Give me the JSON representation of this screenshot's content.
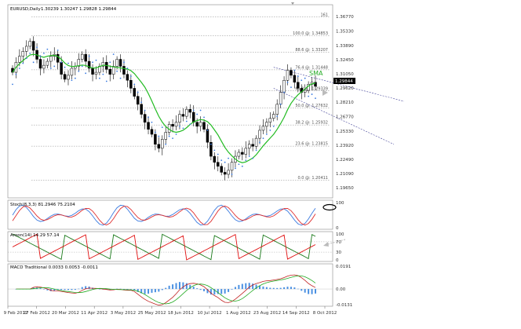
{
  "header": {
    "symbol": "EURUSD,Daily",
    "ohlc": "1.30239 1.30247 1.29828 1.29844"
  },
  "main": {
    "price_label": "1.29844",
    "sma_label": "SMA",
    "y_ticks": [
      "1.36770",
      "1.35330",
      "1.33890",
      "1.32450",
      "1.31050",
      "1.29620",
      "1.28210",
      "1.26770",
      "1.25330",
      "1.23920",
      "1.22490",
      "1.21090",
      "1.19650"
    ],
    "fib_levels": [
      {
        "label": "161",
        "price": 1.3672
      },
      {
        "label": "100.0 @: 1.34853",
        "price": 1.34853
      },
      {
        "label": "88.6 @: 1.33207",
        "price": 1.33207
      },
      {
        "label": "76.4 @: 1.31448",
        "price": 1.31448
      },
      {
        "label": "61.8 @: 1.29339",
        "price": 1.29339
      },
      {
        "label": "50.0 @: 1.27632",
        "price": 1.27632
      },
      {
        "label": "38.2 @: 1.25932",
        "price": 1.25932
      },
      {
        "label": "23.6 @: 1.23815",
        "price": 1.23815
      },
      {
        "label": "0.0 @: 1.20411",
        "price": 1.20411
      }
    ]
  },
  "stoch": {
    "label": "Stoch(8,3,3) 81.2946 75.2104",
    "y_ticks": [
      "100",
      "0"
    ]
  },
  "aroon": {
    "label": "Aroon(14) 14.29 57.14",
    "y_ticks": [
      "100",
      "70",
      "30",
      "0"
    ]
  },
  "macd": {
    "label": "MACD Traditional 0.0033 0.0053 -0.0011",
    "y_ticks": [
      "0.0191",
      "0.00",
      "-0.0131"
    ]
  },
  "x_ticks": [
    "9 Feb 2012",
    "27 Feb 2012",
    "20 Mar 2012",
    "11 Apr 2012",
    "3 May 2012",
    "25 May 2012",
    "18 Jun 2012",
    "10 Jul 2012",
    "1 Aug 2012",
    "23 Aug 2012",
    "14 Sep 2012",
    "8 Oct 2012"
  ],
  "colors": {
    "candle": "#000000",
    "sar": "#3b7be0",
    "sma": "#22bb22",
    "trendline": "#444499",
    "stoch_k": "#3b7be0",
    "stoch_d": "#e03030",
    "aroon_up": "#1a7a1a",
    "aroon_down": "#e01010",
    "macd_hist": "#4a90e2",
    "macd_line": "#c02020",
    "macd_signal": "#22aa22"
  },
  "chart_data": {
    "type": "candlestick",
    "symbol": "EURUSD",
    "timeframe": "Daily",
    "ylim": [
      1.188,
      1.378
    ],
    "x_ticks": [
      "9 Feb 2012",
      "27 Feb 2012",
      "20 Mar 2012",
      "11 Apr 2012",
      "3 May 2012",
      "25 May 2012",
      "18 Jun 2012",
      "10 Jul 2012",
      "1 Aug 2012",
      "23 Aug 2012",
      "14 Sep 2012",
      "8 Oct 2012"
    ],
    "close_path": [
      1.312,
      1.322,
      1.328,
      1.333,
      1.338,
      1.343,
      1.334,
      1.325,
      1.316,
      1.319,
      1.323,
      1.328,
      1.33,
      1.322,
      1.31,
      1.305,
      1.309,
      1.316,
      1.318,
      1.325,
      1.33,
      1.323,
      1.316,
      1.31,
      1.312,
      1.318,
      1.322,
      1.315,
      1.31,
      1.318,
      1.325,
      1.318,
      1.31,
      1.304,
      1.296,
      1.288,
      1.28,
      1.27,
      1.262,
      1.255,
      1.25,
      1.24,
      1.236,
      1.245,
      1.252,
      1.26,
      1.258,
      1.262,
      1.27,
      1.268,
      1.275,
      1.272,
      1.262,
      1.258,
      1.262,
      1.255,
      1.242,
      1.228,
      1.222,
      1.218,
      1.212,
      1.21,
      1.214,
      1.222,
      1.228,
      1.232,
      1.23,
      1.236,
      1.24,
      1.238,
      1.246,
      1.254,
      1.258,
      1.262,
      1.266,
      1.27,
      1.28,
      1.292,
      1.304,
      1.314,
      1.309,
      1.302,
      1.296,
      1.292,
      1.294,
      1.3,
      1.302,
      1.298
    ],
    "fib_levels": [
      161,
      100,
      88.6,
      76.4,
      61.8,
      50,
      38.2,
      23.6,
      0
    ],
    "fib_prices": [
      1.3672,
      1.34853,
      1.33207,
      1.31448,
      1.29339,
      1.27632,
      1.25932,
      1.23815,
      1.20411
    ],
    "last_close": 1.29844,
    "stoch": {
      "k": 81.2946,
      "d": 75.2104,
      "ylim": [
        0,
        100
      ]
    },
    "aroon": {
      "period": 14,
      "up": 14.29,
      "down": 57.14,
      "levels": [
        100,
        70,
        30,
        0
      ]
    },
    "macd": {
      "name": "MACD Traditional",
      "values": [
        0.0033,
        0.0053,
        -0.0011
      ],
      "ylim": [
        -0.0131,
        0.0191
      ]
    }
  }
}
